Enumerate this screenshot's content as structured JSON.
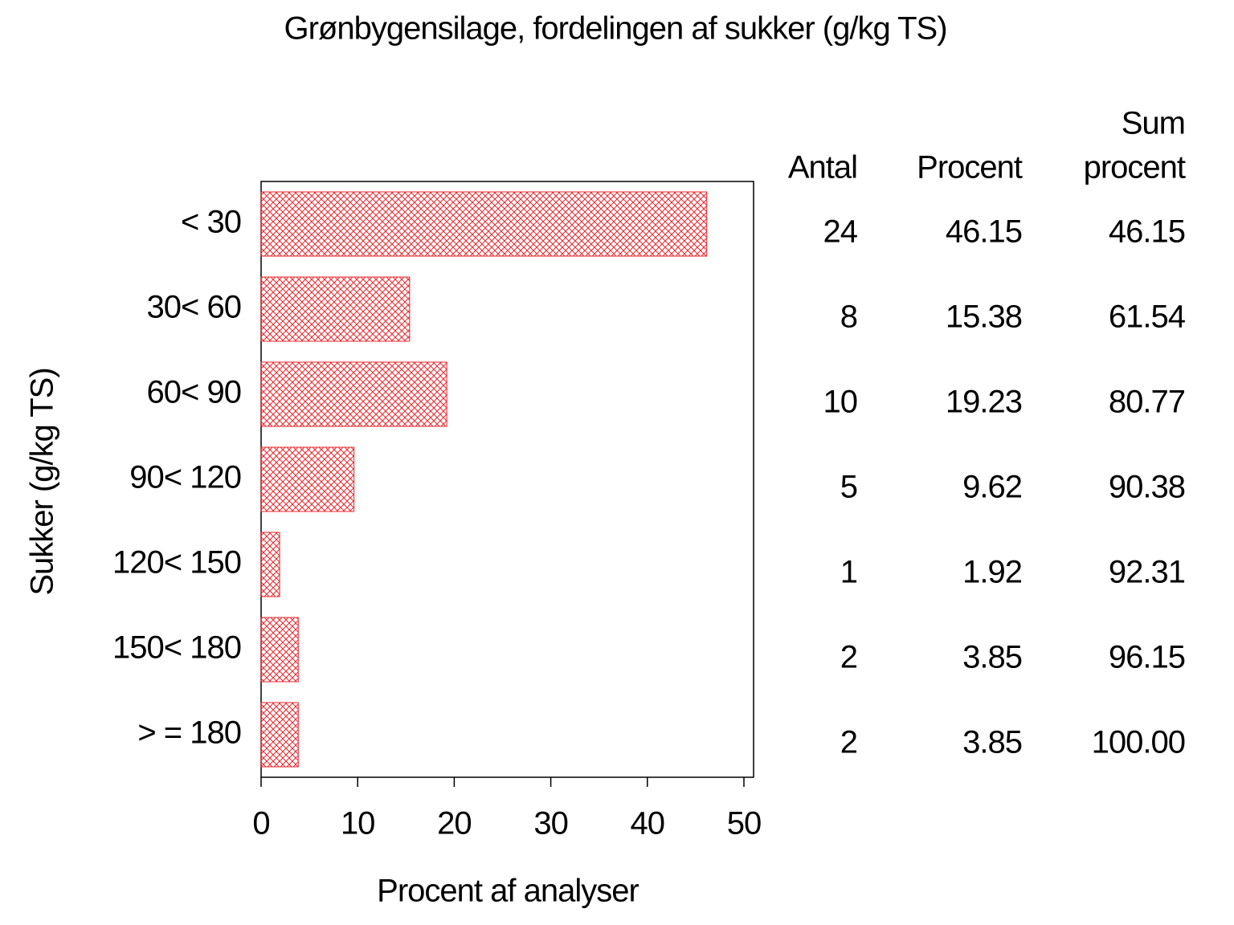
{
  "chart_data": {
    "type": "barh",
    "title": "Grønbygensilage,  fordelingen  af  sukker  (g/kg  TS)",
    "xlabel": "Procent  af  analyser",
    "ylabel": "Sukker  (g/kg  TS)",
    "categories": [
      "< 30",
      "30< 60",
      "60< 90",
      "90< 120",
      "120< 150",
      "150< 180",
      "> = 180"
    ],
    "values": [
      46.15,
      15.38,
      19.23,
      9.62,
      1.92,
      3.85,
      3.85
    ],
    "color": "#e8262b",
    "xlim": [
      0,
      51
    ],
    "xticks": [
      0,
      10,
      20,
      30,
      40,
      50
    ],
    "table_columns": [
      {
        "header": [
          "Antal"
        ],
        "values": [
          24,
          8,
          10,
          5,
          1,
          2,
          2
        ]
      },
      {
        "header": [
          "Procent"
        ],
        "values": [
          46.15,
          15.38,
          19.23,
          9.62,
          1.92,
          3.85,
          3.85
        ]
      },
      {
        "header": [
          "Sum",
          "procent"
        ],
        "values": [
          46.15,
          61.54,
          80.77,
          90.38,
          92.31,
          96.15,
          100
        ],
        "value_labels": [
          "46.15",
          "61.54",
          "80.77",
          "90.38",
          "92.31",
          "96.15",
          "100.00"
        ]
      }
    ]
  }
}
